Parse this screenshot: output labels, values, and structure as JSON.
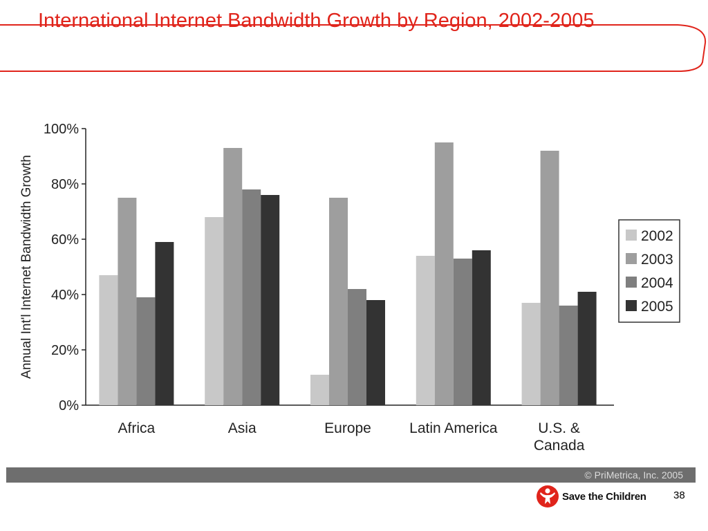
{
  "slide": {
    "title": "International Internet Bandwidth Growth by Region, 2002-2005",
    "page_number": "38",
    "copyright": "© PriMetrica, Inc. 2005",
    "logo_text": "Save the Children",
    "accent_color": "#e0241b"
  },
  "chart_data": {
    "type": "bar",
    "title": "",
    "xlabel": "",
    "ylabel": "Annual Int'l Internet Bandwidth Growth",
    "ylim": [
      0,
      100
    ],
    "yticks": [
      "0%",
      "20%",
      "40%",
      "60%",
      "80%",
      "100%"
    ],
    "categories": [
      "Africa",
      "Asia",
      "Europe",
      "Latin America",
      "U.S. & Canada"
    ],
    "category_lines": [
      [
        "Africa"
      ],
      [
        "Asia"
      ],
      [
        "Europe"
      ],
      [
        "Latin America"
      ],
      [
        "U.S. &",
        "Canada"
      ]
    ],
    "legend_position": "right",
    "grid": false,
    "series": [
      {
        "name": "2002",
        "color": "#c8c8c8",
        "values": [
          47,
          68,
          11,
          54,
          37
        ]
      },
      {
        "name": "2003",
        "color": "#9e9e9e",
        "values": [
          75,
          93,
          75,
          95,
          92
        ]
      },
      {
        "name": "2004",
        "color": "#7f7f7f",
        "values": [
          39,
          78,
          42,
          53,
          36
        ]
      },
      {
        "name": "2005",
        "color": "#333333",
        "values": [
          59,
          76,
          38,
          56,
          41
        ]
      }
    ]
  }
}
